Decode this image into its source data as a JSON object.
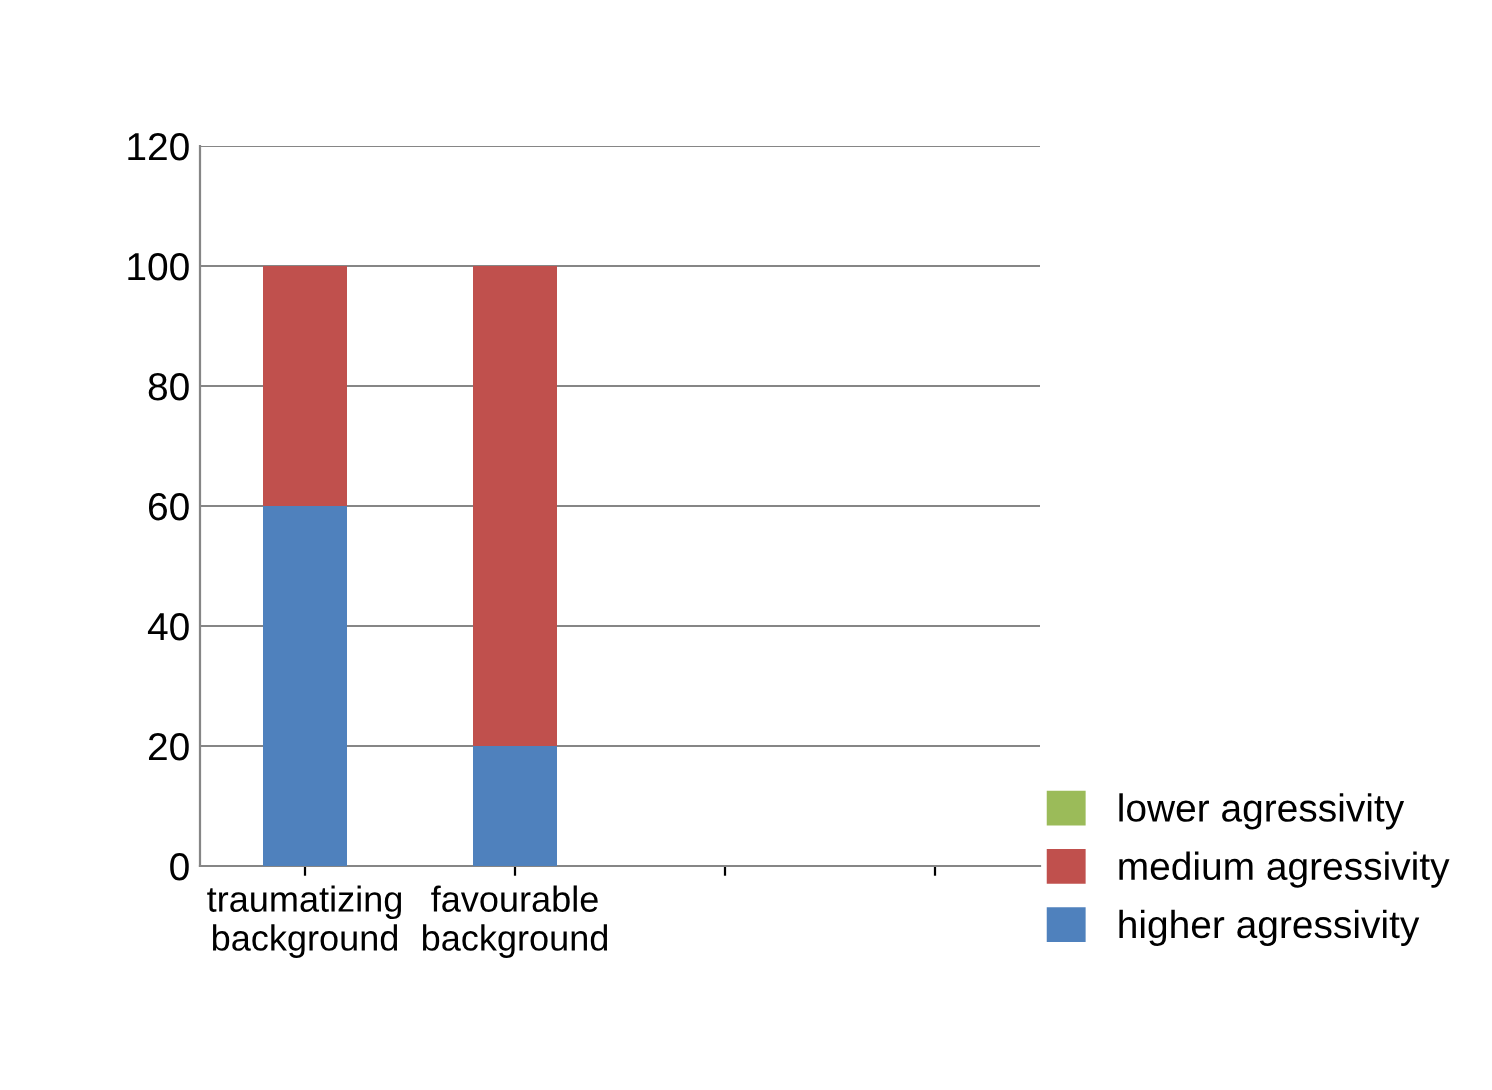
{
  "chart_data": {
    "type": "bar",
    "stacked": true,
    "categories": [
      "traumatizing background",
      "favourable background",
      null,
      null
    ],
    "series": [
      {
        "name": "higher agressivity",
        "color": "#4f81bd",
        "values": [
          60,
          20,
          null,
          null
        ]
      },
      {
        "name": "medium agressivity",
        "color": "#c0504d",
        "values": [
          40,
          80,
          null,
          null
        ]
      },
      {
        "name": "lower agressivity",
        "color": "#9bbb59",
        "values": [
          0,
          0,
          null,
          null
        ]
      }
    ],
    "ylim": [
      0,
      120
    ],
    "yticks": [
      0,
      20,
      40,
      60,
      80,
      100,
      120
    ],
    "grid": "y",
    "legend": "bottom right"
  }
}
